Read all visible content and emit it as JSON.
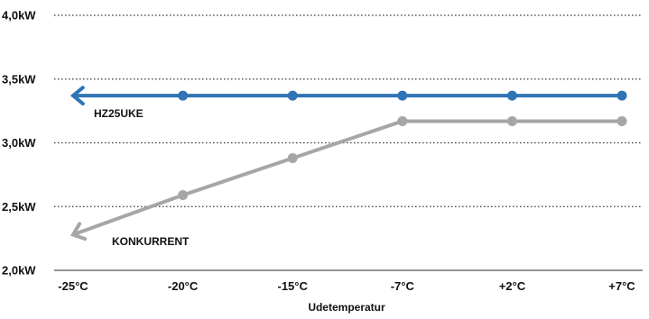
{
  "chart_data": {
    "type": "line",
    "categories": [
      "-25°C",
      "-20°C",
      "-15°C",
      "-7°C",
      "+2°C",
      "+7°C"
    ],
    "y_ticks": [
      "2,0kW",
      "2,5kW",
      "3,0kW",
      "3,5kW",
      "4,0kW"
    ],
    "ylim": [
      2.0,
      4.0
    ],
    "xlabel": "Udetemperatur",
    "ylabel": "",
    "title": "",
    "grid": "horizontal dotted",
    "series": [
      {
        "name": "HZ25UKE",
        "values": [
          3.37,
          3.37,
          3.37,
          3.37,
          3.37,
          3.37
        ],
        "marker_from_index": 1,
        "arrow_at_start": true,
        "color": "#2f74b5"
      },
      {
        "name": "KONKURRENT",
        "values": [
          2.28,
          2.59,
          2.88,
          3.17,
          3.17,
          3.17
        ],
        "marker_from_index": 1,
        "arrow_at_start": true,
        "color": "#a6a6a6"
      }
    ]
  }
}
